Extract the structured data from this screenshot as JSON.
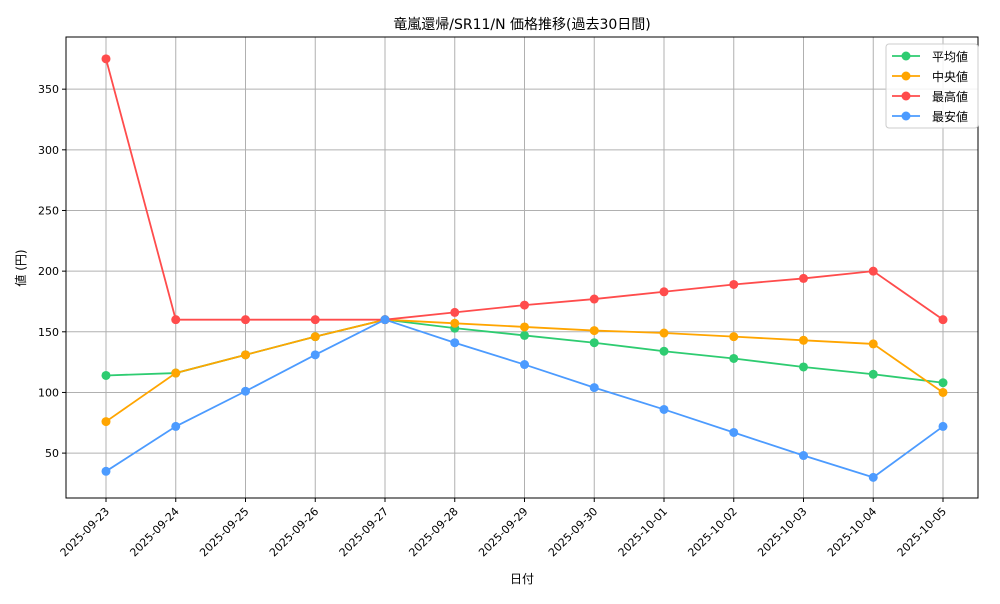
{
  "chart_data": {
    "type": "line",
    "title": "竜嵐還帰/SR11/N 価格推移(過去30日間)",
    "xlabel": "日付",
    "ylabel": "値 (円)",
    "ylim": [
      13,
      393
    ],
    "yticks": [
      50,
      100,
      150,
      200,
      250,
      300,
      350
    ],
    "grid": true,
    "legend_position": "top-right",
    "categories": [
      "2025-09-23",
      "2025-09-24",
      "2025-09-25",
      "2025-09-26",
      "2025-09-27",
      "2025-09-28",
      "2025-09-29",
      "2025-09-30",
      "2025-10-01",
      "2025-10-02",
      "2025-10-03",
      "2025-10-04",
      "2025-10-05"
    ],
    "series": [
      {
        "name": "平均値",
        "color": "#2ecc71",
        "values": [
          114,
          116,
          131,
          146,
          160,
          153,
          147,
          141,
          134,
          128,
          121,
          115,
          108
        ]
      },
      {
        "name": "中央値",
        "color": "#ffa500",
        "values": [
          76,
          116,
          131,
          146,
          160,
          157,
          154,
          151,
          149,
          146,
          143,
          140,
          100
        ]
      },
      {
        "name": "最高値",
        "color": "#ff4c4c",
        "values": [
          375,
          160,
          160,
          160,
          160,
          166,
          172,
          177,
          183,
          189,
          194,
          200,
          160
        ]
      },
      {
        "name": "最安値",
        "color": "#4c9bff",
        "values": [
          35,
          72,
          101,
          131,
          160,
          141,
          123,
          104,
          86,
          67,
          48,
          30,
          72
        ]
      }
    ]
  }
}
